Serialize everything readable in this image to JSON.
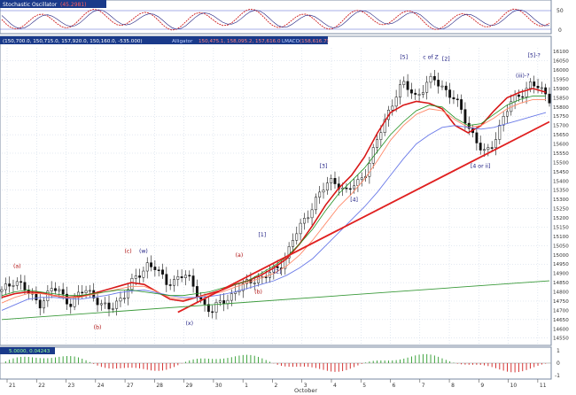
{
  "window": {
    "oscillator_title": "Stochastic Oscillator",
    "oscillator_value": "(45.2981)",
    "price_title": "(150,700.0, 150,715.0, 157,920.0, 150,160.0, -535.000)",
    "price_indicators": "Alligator",
    "alligator_values": "150,475.1, 158,095.2, 157,616.0",
    "lmaco_label": "LMACO",
    "lmaco_value": "(158,616.7)",
    "macd_values": "5.0000, 0.04243"
  },
  "colors": {
    "background": "#ffffff",
    "grid": "#b8c8dc",
    "wave_label": "#1a1a80",
    "wave_label_alt": "#b01010",
    "trendline": "#e02020",
    "lower_trendline": "#3a9a3a",
    "ma_fast": "#d81818",
    "ma_mid": "#ff8a6a",
    "ma_slow": "#6a7ae8",
    "ma_green": "#209020",
    "title_bar": "#1a3a8a"
  },
  "chart_data": {
    "type": "candlestick",
    "y_axis_ticks": [
      14550,
      14600,
      14650,
      14700,
      14750,
      14800,
      14850,
      14900,
      14950,
      15000,
      15050,
      15100,
      15150,
      15200,
      15250,
      15300,
      15350,
      15400,
      15450,
      15500,
      15550,
      15600,
      15650,
      15700,
      15750,
      15800,
      15850,
      15900,
      15950,
      16000,
      16050,
      16100
    ],
    "ylim": [
      14520,
      16120
    ],
    "x_tick_labels": [
      "21",
      "22",
      "23",
      "24",
      "27",
      "28",
      "29",
      "30",
      "1",
      "2",
      "3",
      "4",
      "5",
      "6",
      "7",
      "8",
      "9",
      "10",
      "11"
    ],
    "month_label": "October",
    "oscillator_ticks": [
      "50",
      "0"
    ],
    "macd_ticks": [
      "1",
      "0",
      "-1"
    ],
    "closes": [
      14800,
      14830,
      14870,
      14840,
      14800,
      14760,
      14740,
      14780,
      14820,
      14800,
      14760,
      14740,
      14780,
      14810,
      14790,
      14760,
      14720,
      14700,
      14740,
      14780,
      14830,
      14870,
      14900,
      14960,
      14940,
      14880,
      14840,
      14860,
      14900,
      14880,
      14830,
      14780,
      14720,
      14690,
      14730,
      14760,
      14780,
      14810,
      14830,
      14860,
      14880,
      14870,
      14900,
      14920,
      14960,
      15020,
      15100,
      15160,
      15220,
      15280,
      15330,
      15380,
      15410,
      15380,
      15330,
      15370,
      15400,
      15440,
      15520,
      15620,
      15720,
      15800,
      15870,
      15920,
      15900,
      15860,
      15890,
      15930,
      15950,
      15920,
      15880,
      15840,
      15790,
      15720,
      15650,
      15580,
      15540,
      15600,
      15680,
      15760,
      15820,
      15860,
      15890,
      15920,
      15910,
      15880,
      15850
    ],
    "moving_averages": [
      {
        "name": "red",
        "values": [
          14770,
          14790,
          14800,
          14795,
          14780,
          14770,
          14775,
          14790,
          14810,
          14830,
          14850,
          14840,
          14800,
          14760,
          14750,
          14770,
          14790,
          14810,
          14840,
          14860,
          14890,
          14930,
          14980,
          15060,
          15160,
          15270,
          15360,
          15430,
          15530,
          15660,
          15770,
          15810,
          15830,
          15820,
          15790,
          15700,
          15660,
          15700,
          15780,
          15850,
          15880,
          15900,
          15880
        ]
      },
      {
        "name": "salmon",
        "values": [
          14740,
          14770,
          14790,
          14790,
          14780,
          14770,
          14770,
          14785,
          14800,
          14815,
          14830,
          14830,
          14800,
          14770,
          14760,
          14770,
          14785,
          14800,
          14825,
          14850,
          14875,
          14900,
          14940,
          15000,
          15080,
          15170,
          15260,
          15330,
          15410,
          15510,
          15620,
          15700,
          15760,
          15790,
          15780,
          15730,
          15690,
          15700,
          15740,
          15790,
          15820,
          15840,
          15840
        ]
      },
      {
        "name": "blue",
        "values": [
          14700,
          14730,
          14760,
          14770,
          14770,
          14765,
          14760,
          14770,
          14780,
          14795,
          14805,
          14810,
          14795,
          14780,
          14770,
          14770,
          14775,
          14785,
          14800,
          14820,
          14840,
          14860,
          14890,
          14930,
          14980,
          15050,
          15120,
          15190,
          15260,
          15340,
          15430,
          15520,
          15600,
          15650,
          15690,
          15700,
          15690,
          15680,
          15690,
          15710,
          15730,
          15750,
          15770
        ]
      },
      {
        "name": "green",
        "values": [
          14780,
          14800,
          14810,
          14800,
          14790,
          14780,
          14780,
          14790,
          14800,
          14810,
          14810,
          14800,
          14790,
          14780,
          14780,
          14790,
          14800,
          14820,
          14840,
          14860,
          14900,
          14940,
          14990,
          15060,
          15140,
          15240,
          15330,
          15400,
          15470,
          15560,
          15650,
          15720,
          15780,
          15810,
          15800,
          15740,
          15700,
          15710,
          15760,
          15810,
          15840,
          15860,
          15860
        ]
      }
    ],
    "wave_labels": [
      {
        "text": "(a)",
        "x": 4,
        "y": 14930,
        "color": "alt"
      },
      {
        "text": "(b)",
        "x": 25,
        "y": 14600,
        "color": "alt"
      },
      {
        "text": "(c)",
        "x": 33,
        "y": 15010,
        "color": "alt"
      },
      {
        "text": "(w)",
        "x": 37,
        "y": 15010,
        "color": "main"
      },
      {
        "text": "(x)",
        "x": 49,
        "y": 14620,
        "color": "main"
      },
      {
        "text": "(a)",
        "x": 62,
        "y": 14990,
        "color": "alt"
      },
      {
        "text": "(b)",
        "x": 67,
        "y": 14790,
        "color": "alt"
      },
      {
        "text": "[1]",
        "x": 68,
        "y": 15100,
        "color": "main"
      },
      {
        "text": "[2]",
        "x": 72,
        "y": 14900,
        "color": "main"
      },
      {
        "text": "[3]",
        "x": 84,
        "y": 15470,
        "color": "main"
      },
      {
        "text": "[4]",
        "x": 92,
        "y": 15290,
        "color": "main"
      },
      {
        "text": "[5]",
        "x": 105,
        "y": 16060,
        "color": "main"
      },
      {
        "text": "c of Z",
        "x": 112,
        "y": 16060,
        "color": "main"
      },
      {
        "text": "[2]",
        "x": 116,
        "y": 16050,
        "color": "main"
      },
      {
        "text": "[4 or ii]",
        "x": 125,
        "y": 15470,
        "color": "main"
      },
      {
        "text": "(iii)-?",
        "x": 136,
        "y": 15960,
        "color": "main"
      },
      {
        "text": "[5]-?",
        "x": 139,
        "y": 16070,
        "color": "main"
      }
    ],
    "trendlines": [
      {
        "name": "red-support",
        "from": [
          14690,
          46
        ],
        "to": [
          15720,
          143
        ]
      },
      {
        "name": "green-support",
        "from": [
          14650,
          0
        ],
        "to": [
          14860,
          143
        ]
      }
    ]
  }
}
